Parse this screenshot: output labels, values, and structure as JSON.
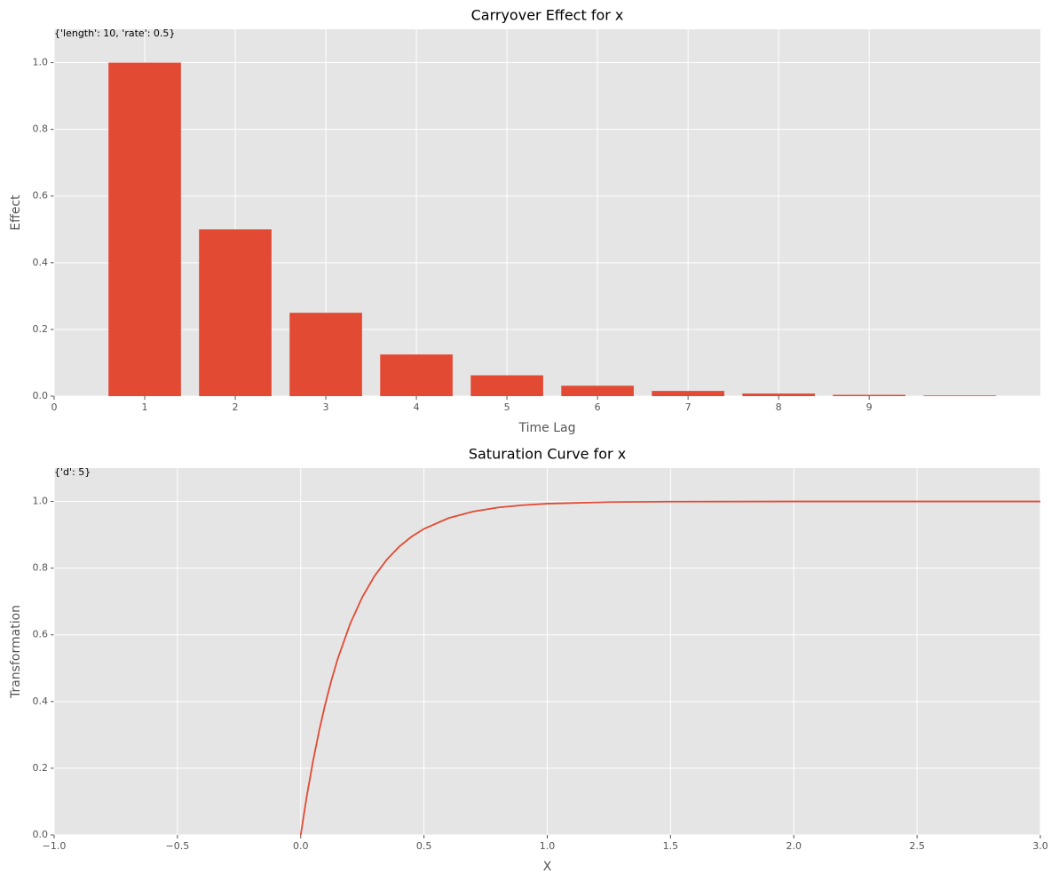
{
  "chart_data": [
    {
      "type": "bar",
      "title": "Carryover Effect for x",
      "annotation": "{'length': 10, 'rate': 0.5}",
      "x_label": "Time Lag",
      "y_label": "Effect",
      "x": [
        1,
        2,
        3,
        4,
        5,
        6,
        7,
        8,
        9,
        10
      ],
      "values": [
        1,
        0.5,
        0.25,
        0.125,
        0.0625,
        0.03125,
        0.015625,
        0.0078125,
        0.00390625,
        0.001953125
      ],
      "color": "#e24a33",
      "bar_width": 0.8,
      "xlim": [
        0,
        10.89
      ],
      "xticks": [
        0,
        1,
        2,
        3,
        4,
        5,
        6,
        7,
        8,
        9
      ],
      "ylim": [
        0,
        1.1
      ],
      "yticks": [
        {
          "value": 0,
          "label": "0.0"
        },
        0.2,
        0.4,
        0.6,
        0.8,
        {
          "value": 1,
          "label": "1.0"
        }
      ],
      "grid": true
    },
    {
      "type": "line",
      "title": "Saturation Curve for x",
      "annotation": "{'d': 5}",
      "x_label": "X",
      "y_label": "Transformation",
      "x": [
        0,
        0.025,
        0.05,
        0.075,
        0.1,
        0.125,
        0.15,
        0.2,
        0.25,
        0.3,
        0.35,
        0.4,
        0.45,
        0.5,
        0.6,
        0.7,
        0.8,
        0.9,
        1.0,
        1.25,
        1.5,
        2,
        2.5,
        3
      ],
      "values": [
        0,
        0.1175,
        0.2212,
        0.3127,
        0.3935,
        0.4647,
        0.5276,
        0.6321,
        0.7135,
        0.7769,
        0.8262,
        0.8647,
        0.8946,
        0.9179,
        0.9502,
        0.9698,
        0.9817,
        0.9889,
        0.9933,
        0.9981,
        0.9994,
        1.0,
        1.0,
        1.0
      ],
      "color": "#e24a33",
      "xlim": [
        -1,
        3
      ],
      "xticks": [
        {
          "value": -1,
          "label": "−1.0"
        },
        {
          "value": -0.5,
          "label": "−0.5"
        },
        {
          "value": 0,
          "label": "0.0"
        },
        0.5,
        {
          "value": 1,
          "label": "1.0"
        },
        1.5,
        {
          "value": 2,
          "label": "2.0"
        },
        2.5,
        {
          "value": 3,
          "label": "3.0"
        }
      ],
      "ylim": [
        0,
        1.1
      ],
      "yticks": [
        {
          "value": 0,
          "label": "0.0"
        },
        0.2,
        0.4,
        0.6,
        0.8,
        {
          "value": 1,
          "label": "1.0"
        }
      ],
      "grid": true
    }
  ]
}
